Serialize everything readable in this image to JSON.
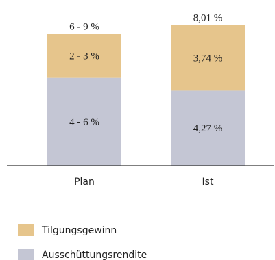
{
  "chart_data": {
    "type": "bar",
    "stacked": true,
    "categories": [
      "Plan",
      "Ist"
    ],
    "series": [
      {
        "name": "Ausschüttungsrendite",
        "values": [
          5.0,
          4.27
        ],
        "labels": [
          "4 - 6 %",
          "4,27 %"
        ],
        "color": "#c4c6d4"
      },
      {
        "name": "Tilgungsgewinn",
        "values": [
          2.5,
          3.74
        ],
        "labels": [
          "2 - 3 %",
          "3,74 %"
        ],
        "color": "#e6c58c"
      }
    ],
    "totals": [
      7.5,
      8.01
    ],
    "total_labels": [
      "6 - 9 %",
      "8,01 %"
    ],
    "ylim": [
      0,
      8.3
    ],
    "legend_position": "bottom-left",
    "grid": false
  }
}
